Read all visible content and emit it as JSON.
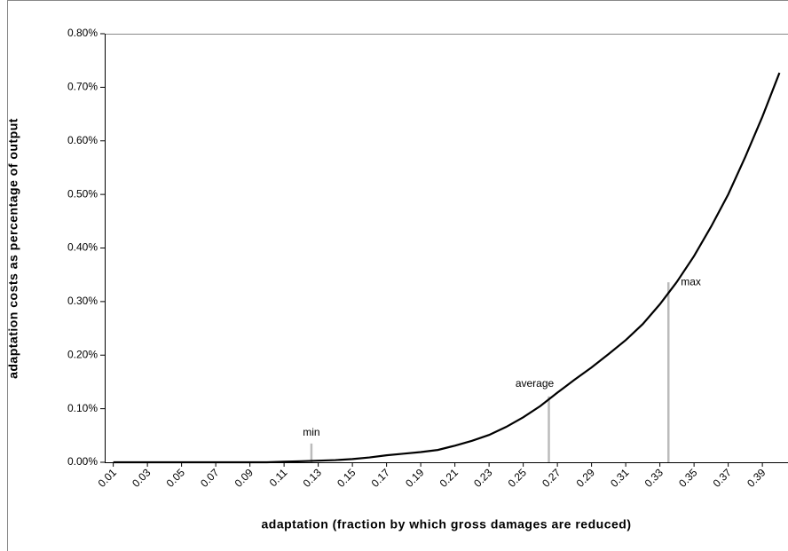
{
  "chart_data": {
    "type": "line",
    "x_label": "adaptation (fraction by which gross damages are reduced)",
    "y_label": "adaptation costs as percentage of output",
    "x": [
      0.01,
      0.02,
      0.03,
      0.04,
      0.05,
      0.06,
      0.07,
      0.08,
      0.09,
      0.1,
      0.11,
      0.12,
      0.13,
      0.14,
      0.15,
      0.16,
      0.17,
      0.18,
      0.19,
      0.2,
      0.21,
      0.22,
      0.23,
      0.24,
      0.25,
      0.26,
      0.27,
      0.28,
      0.29,
      0.3,
      0.31,
      0.32,
      0.33,
      0.34,
      0.35,
      0.36,
      0.37,
      0.38,
      0.39,
      0.4
    ],
    "series": [
      {
        "color": "#000000",
        "values": [
          0,
          0,
          0,
          0,
          0,
          0,
          0,
          0,
          0,
          0,
          0.001,
          0.002,
          0.003,
          0.004,
          0.006,
          0.009,
          0.013,
          0.016,
          0.019,
          0.023,
          0.031,
          0.04,
          0.051,
          0.066,
          0.084,
          0.105,
          0.13,
          0.154,
          0.177,
          0.202,
          0.228,
          0.258,
          0.295,
          0.337,
          0.385,
          0.44,
          0.5,
          0.57,
          0.645,
          0.727
        ]
      }
    ],
    "xlim": [
      0.005,
      0.405
    ],
    "xticks": [
      0.01,
      0.03,
      0.05,
      0.07,
      0.09,
      0.11,
      0.13,
      0.15,
      0.17,
      0.19,
      0.21,
      0.23,
      0.25,
      0.27,
      0.29,
      0.31,
      0.33,
      0.35,
      0.37,
      0.39
    ],
    "ylim": [
      0,
      0.8
    ],
    "yticks": [
      {
        "value": 0,
        "label": "0.00%"
      },
      {
        "value": 0.1,
        "label": "0.10%"
      },
      {
        "value": 0.2,
        "label": "0.20%"
      },
      {
        "value": 0.3,
        "label": "0.30%"
      },
      {
        "value": 0.4,
        "label": "0.40%"
      },
      {
        "value": 0.5,
        "label": "0.50%"
      },
      {
        "value": 0.6,
        "label": "0.60%"
      },
      {
        "value": 0.7,
        "label": "0.70%"
      },
      {
        "value": 0.8,
        "label": "0.80%"
      }
    ],
    "annotations": [
      {
        "label": "min",
        "x": 0.126,
        "y": 0.035,
        "color": "#bbbbbb"
      },
      {
        "label": "average",
        "x": 0.265,
        "y": 0.123,
        "color": "#bbbbbb"
      },
      {
        "label": "max",
        "x": 0.335,
        "y": 0.336,
        "color": "#bbbbbb"
      }
    ]
  }
}
